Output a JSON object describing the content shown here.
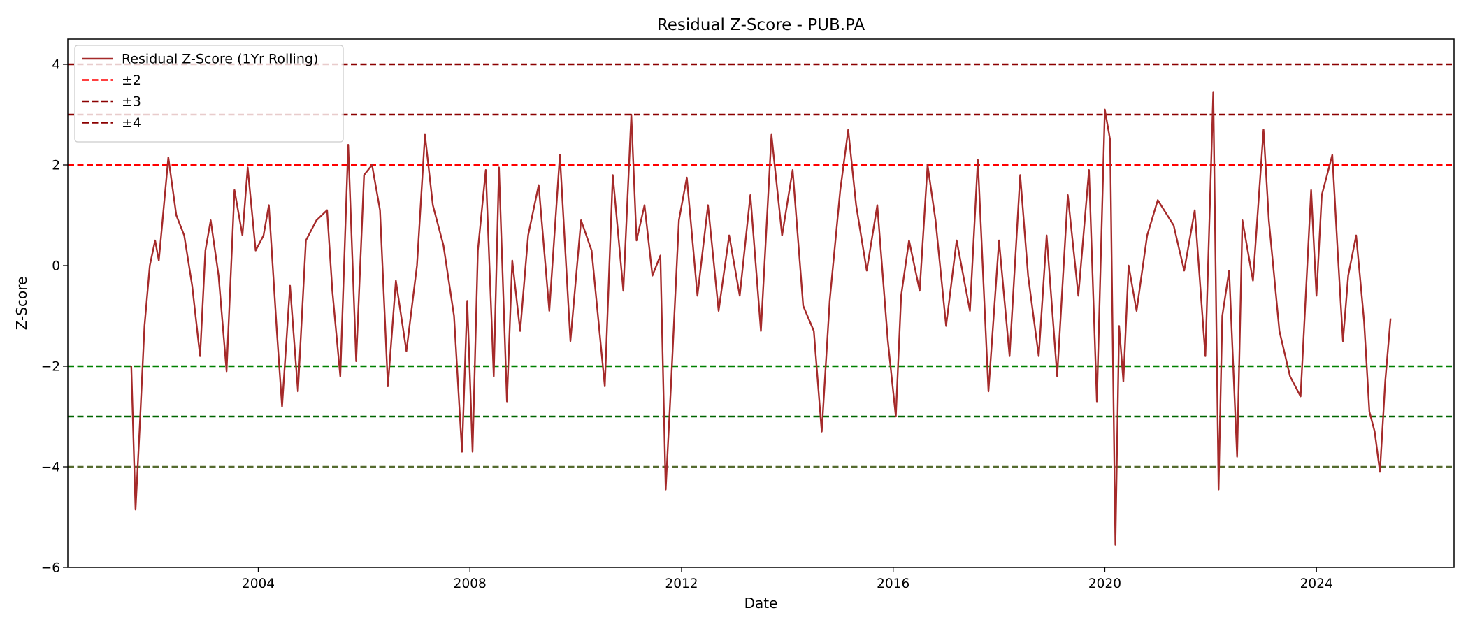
{
  "chart_data": {
    "type": "line",
    "title": "Residual Z-Score - PUB.PA",
    "xlabel": "Date",
    "ylabel": "Z-Score",
    "xlim": [
      2000.4,
      2026.6
    ],
    "ylim": [
      -6.0,
      4.5
    ],
    "x_ticks": [
      2004,
      2008,
      2012,
      2016,
      2020,
      2024
    ],
    "x_tick_labels": [
      "2004",
      "2008",
      "2012",
      "2016",
      "2020",
      "2024"
    ],
    "y_ticks": [
      -6,
      -4,
      -2,
      0,
      2,
      4
    ],
    "y_tick_labels": [
      "−6",
      "−4",
      "−2",
      "0",
      "2",
      "4"
    ],
    "grid": false,
    "legend_position": "upper-left",
    "series": [
      {
        "name": "Residual Z-Score (1Yr Rolling)",
        "color": "#a52a2a",
        "style": "solid",
        "x": [
          2001.6,
          2001.68,
          2001.76,
          2001.85,
          2001.95,
          2002.05,
          2002.12,
          2002.2,
          2002.3,
          2002.45,
          2002.6,
          2002.75,
          2002.9,
          2003.0,
          2003.1,
          2003.25,
          2003.4,
          2003.55,
          2003.7,
          2003.8,
          2003.95,
          2004.1,
          2004.2,
          2004.35,
          2004.45,
          2004.6,
          2004.75,
          2004.9,
          2005.1,
          2005.3,
          2005.4,
          2005.55,
          2005.7,
          2005.85,
          2006.0,
          2006.15,
          2006.3,
          2006.45,
          2006.6,
          2006.8,
          2007.0,
          2007.15,
          2007.3,
          2007.5,
          2007.7,
          2007.85,
          2007.95,
          2008.05,
          2008.15,
          2008.3,
          2008.45,
          2008.55,
          2008.7,
          2008.8,
          2008.95,
          2009.1,
          2009.3,
          2009.5,
          2009.7,
          2009.9,
          2010.1,
          2010.3,
          2010.55,
          2010.7,
          2010.9,
          2011.05,
          2011.15,
          2011.3,
          2011.45,
          2011.6,
          2011.7,
          2011.8,
          2011.95,
          2012.1,
          2012.3,
          2012.5,
          2012.7,
          2012.9,
          2013.1,
          2013.3,
          2013.5,
          2013.7,
          2013.9,
          2014.1,
          2014.3,
          2014.5,
          2014.65,
          2014.8,
          2015.0,
          2015.15,
          2015.3,
          2015.5,
          2015.7,
          2015.9,
          2016.05,
          2016.15,
          2016.3,
          2016.5,
          2016.65,
          2016.8,
          2017.0,
          2017.2,
          2017.45,
          2017.6,
          2017.8,
          2018.0,
          2018.2,
          2018.4,
          2018.55,
          2018.75,
          2018.9,
          2019.1,
          2019.3,
          2019.5,
          2019.7,
          2019.85,
          2020.0,
          2020.1,
          2020.2,
          2020.27,
          2020.35,
          2020.45,
          2020.6,
          2020.8,
          2021.0,
          2021.3,
          2021.5,
          2021.7,
          2021.9,
          2022.05,
          2022.15,
          2022.22,
          2022.35,
          2022.5,
          2022.6,
          2022.8,
          2023.0,
          2023.1,
          2023.3,
          2023.5,
          2023.7,
          2023.9,
          2024.0,
          2024.1,
          2024.3,
          2024.4,
          2024.5,
          2024.6,
          2024.75,
          2024.9,
          2025.0,
          2025.1,
          2025.2,
          2025.3,
          2025.4
        ],
        "y": [
          -2.0,
          -4.85,
          -3.2,
          -1.2,
          0.0,
          0.5,
          0.1,
          1.0,
          2.15,
          1.0,
          0.6,
          -0.4,
          -1.8,
          0.3,
          0.9,
          -0.2,
          -2.1,
          1.5,
          0.6,
          1.95,
          0.3,
          0.6,
          1.2,
          -1.3,
          -2.8,
          -0.4,
          -2.5,
          0.5,
          0.9,
          1.1,
          -0.5,
          -2.2,
          2.4,
          -1.9,
          1.8,
          2.0,
          1.1,
          -2.4,
          -0.3,
          -1.7,
          0.0,
          2.6,
          1.2,
          0.4,
          -1.0,
          -3.7,
          -0.7,
          -3.7,
          0.3,
          1.9,
          -2.2,
          1.95,
          -2.7,
          0.1,
          -1.3,
          0.6,
          1.6,
          -0.9,
          2.2,
          -1.5,
          0.9,
          0.3,
          -2.4,
          1.8,
          -0.5,
          3.0,
          0.5,
          1.2,
          -0.2,
          0.2,
          -4.45,
          -2.4,
          0.9,
          1.75,
          -0.6,
          1.2,
          -0.9,
          0.6,
          -0.6,
          1.4,
          -1.3,
          2.6,
          0.6,
          1.9,
          -0.8,
          -1.3,
          -3.3,
          -0.7,
          1.5,
          2.7,
          1.2,
          -0.1,
          1.2,
          -1.5,
          -3.0,
          -0.6,
          0.5,
          -0.5,
          2.0,
          0.9,
          -1.2,
          0.5,
          -0.9,
          2.1,
          -2.5,
          0.5,
          -1.8,
          1.8,
          -0.2,
          -1.8,
          0.6,
          -2.2,
          1.4,
          -0.6,
          1.9,
          -2.7,
          3.1,
          2.5,
          -5.55,
          -1.2,
          -2.3,
          0.0,
          -0.9,
          0.6,
          1.3,
          0.8,
          -0.1,
          1.1,
          -1.8,
          3.45,
          -4.45,
          -1.0,
          -0.1,
          -3.8,
          0.9,
          -0.3,
          2.7,
          0.9,
          -1.3,
          -2.2,
          -2.6,
          1.5,
          -0.6,
          1.4,
          2.2,
          0.3,
          -1.5,
          -0.2,
          0.6,
          -1.1,
          -2.9,
          -3.3,
          -4.1,
          -2.3,
          -1.05
        ]
      },
      {
        "name": "±2",
        "color": "#ff0000",
        "style": "dashed",
        "levels": [
          2
        ]
      },
      {
        "name": "±3",
        "color": "#8b0000",
        "style": "dashed",
        "levels": [
          3
        ]
      },
      {
        "name": "±4",
        "color": "#8b0000",
        "style": "dashed",
        "levels": [
          4
        ]
      },
      {
        "color": "#008000",
        "style": "dashed",
        "levels": [
          -2
        ]
      },
      {
        "color": "#006400",
        "style": "dashed",
        "levels": [
          -3
        ]
      },
      {
        "color": "#556b2f",
        "style": "dashed",
        "levels": [
          -4
        ]
      }
    ]
  }
}
